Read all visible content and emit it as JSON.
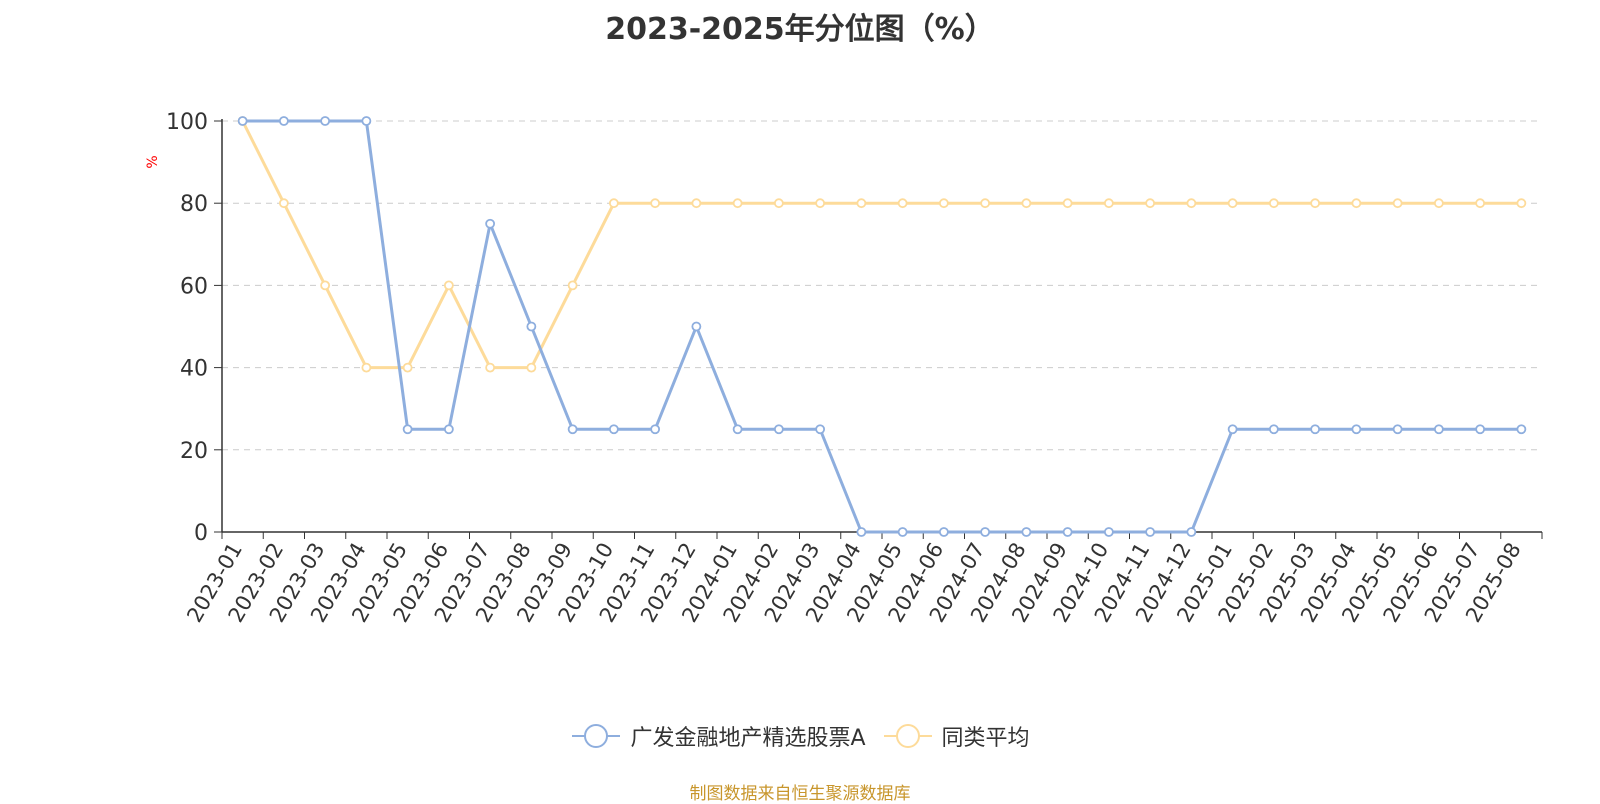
{
  "title": "2023-2025年分位图（%）",
  "source": "制图数据来自恒生聚源数据库",
  "colors": {
    "fund": "#8eaede",
    "peer": "#fddb9a",
    "axis": "#333333",
    "grid": "#cccccc",
    "unit": "#ff0000"
  },
  "chart_data": {
    "type": "line",
    "title": "2023-2025年分位图（%）",
    "ylabel": "%",
    "ylim": [
      0,
      100
    ],
    "yticks": [
      0,
      20,
      40,
      60,
      80,
      100
    ],
    "grid": true,
    "legend_position": "bottom",
    "categories": [
      "2023-01",
      "2023-02",
      "2023-03",
      "2023-04",
      "2023-05",
      "2023-06",
      "2023-07",
      "2023-08",
      "2023-09",
      "2023-10",
      "2023-11",
      "2023-12",
      "2024-01",
      "2024-02",
      "2024-03",
      "2024-04",
      "2024-05",
      "2024-06",
      "2024-07",
      "2024-08",
      "2024-09",
      "2024-10",
      "2024-11",
      "2024-12",
      "2025-01",
      "2025-02",
      "2025-03",
      "2025-04",
      "2025-05",
      "2025-06",
      "2025-07",
      "2025-08"
    ],
    "series": [
      {
        "name": "广发金融地产精选股票A",
        "color": "#8eaede",
        "values": [
          100,
          100,
          100,
          100,
          25,
          25,
          75,
          50,
          25,
          25,
          25,
          50,
          25,
          25,
          25,
          0,
          0,
          0,
          0,
          0,
          0,
          0,
          0,
          0,
          25,
          25,
          25,
          25,
          25,
          25,
          25,
          25
        ]
      },
      {
        "name": "同类平均",
        "color": "#fddb9a",
        "values": [
          100,
          80,
          60,
          40,
          40,
          60,
          40,
          40,
          60,
          80,
          80,
          80,
          80,
          80,
          80,
          80,
          80,
          80,
          80,
          80,
          80,
          80,
          80,
          80,
          80,
          80,
          80,
          80,
          80,
          80,
          80,
          80
        ]
      }
    ]
  }
}
